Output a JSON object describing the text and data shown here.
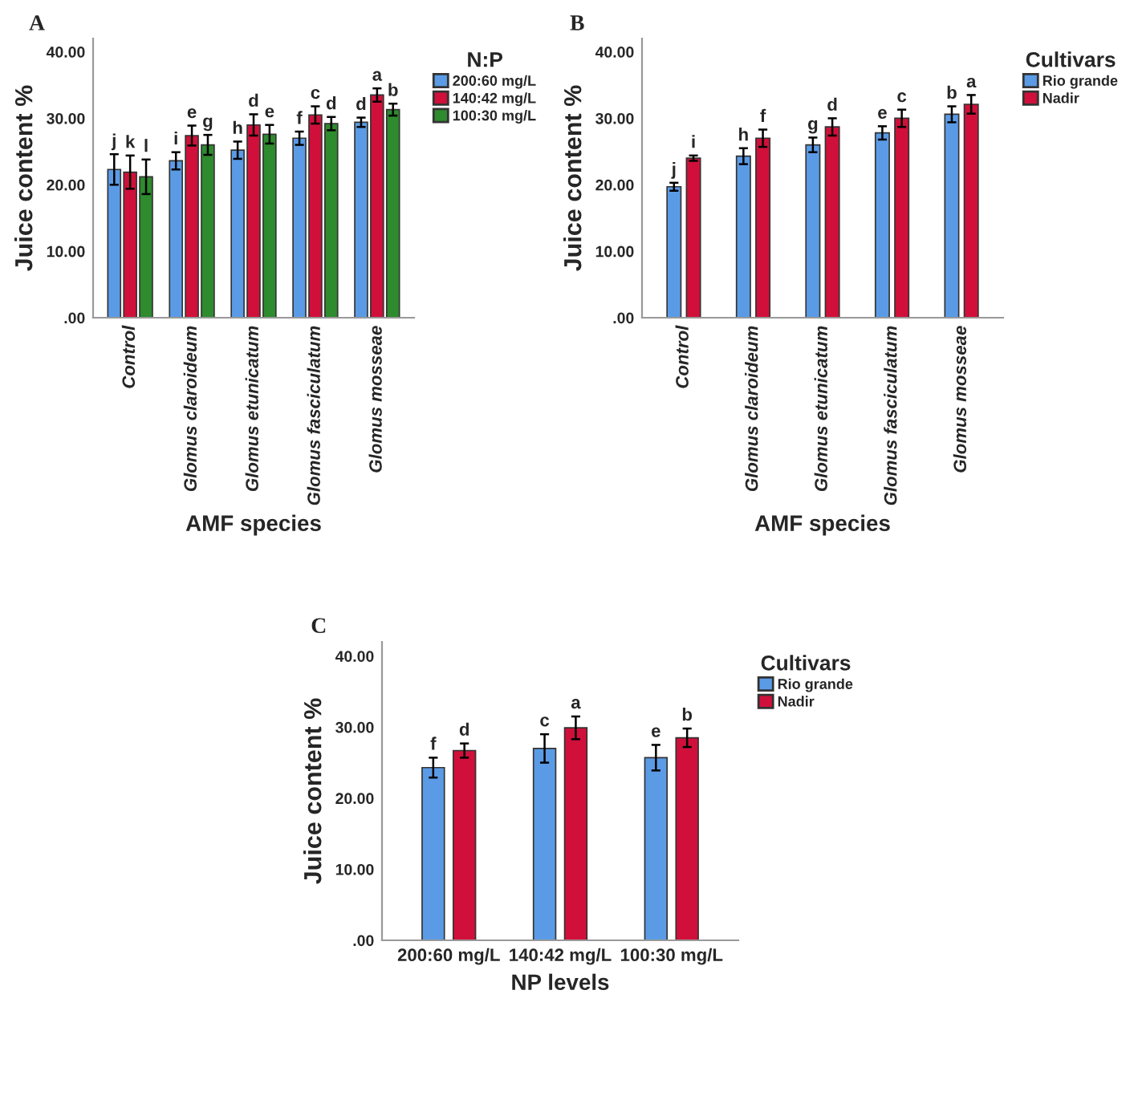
{
  "chart_data": [
    {
      "type": "bar",
      "ylabel": "Juice content %",
      "xlabel": "AMF species",
      "legend_title": "N:P",
      "legend": "top right",
      "annotations": [
        "A"
      ],
      "categories": [
        "Control",
        "Glomus claroideum",
        "Glomus etunicatum",
        "Glomus fasciculatum",
        "Glomus mosseae"
      ],
      "ylim": [
        0,
        42
      ],
      "yticks": [
        {
          "value": 0,
          "label": ".00"
        },
        {
          "value": 10,
          "label": "10.00"
        },
        {
          "value": 20,
          "label": "20.00"
        },
        {
          "value": 30,
          "label": "30.00"
        },
        {
          "value": 40,
          "label": "40.00"
        }
      ],
      "series": [
        {
          "name": "200:60 mg/L",
          "color": "#5b9be6",
          "values": [
            22.3,
            23.6,
            25.2,
            27.0,
            29.4
          ],
          "errors": [
            2.3,
            1.3,
            1.3,
            1.0,
            0.7
          ],
          "value_labels": [
            "j",
            "i",
            "h",
            "f",
            "d"
          ]
        },
        {
          "name": "140:42 mg/L",
          "color": "#d0103a",
          "values": [
            21.9,
            27.4,
            29.0,
            30.5,
            33.5
          ],
          "errors": [
            2.5,
            1.5,
            1.6,
            1.3,
            1.0
          ],
          "value_labels": [
            "k",
            "e",
            "d",
            "c",
            "a"
          ]
        },
        {
          "name": "100:30 mg/L",
          "color": "#2e8b2e",
          "values": [
            21.2,
            26.0,
            27.6,
            29.2,
            31.3
          ],
          "errors": [
            2.6,
            1.5,
            1.4,
            1.0,
            0.9
          ],
          "value_labels": [
            "l",
            "g",
            "e",
            "d",
            "b"
          ]
        }
      ]
    },
    {
      "type": "bar",
      "ylabel": "Juice content %",
      "xlabel": "AMF species",
      "legend_title": "Cultivars",
      "legend": "top right",
      "annotations": [
        "B"
      ],
      "categories": [
        "Control",
        "Glomus claroideum",
        "Glomus etunicatum",
        "Glomus fasciculatum",
        "Glomus mosseae"
      ],
      "ylim": [
        0,
        42
      ],
      "yticks": [
        {
          "value": 0,
          "label": ".00"
        },
        {
          "value": 10,
          "label": "10.00"
        },
        {
          "value": 20,
          "label": "20.00"
        },
        {
          "value": 30,
          "label": "30.00"
        },
        {
          "value": 40,
          "label": "40.00"
        }
      ],
      "series": [
        {
          "name": "Rio grande",
          "color": "#5b9be6",
          "values": [
            19.7,
            24.3,
            26.0,
            27.8,
            30.6
          ],
          "errors": [
            0.6,
            1.2,
            1.1,
            1.0,
            1.2
          ],
          "value_labels": [
            "j",
            "h",
            "g",
            "e",
            "b"
          ]
        },
        {
          "name": "Nadir",
          "color": "#d0103a",
          "values": [
            24.0,
            27.0,
            28.7,
            30.0,
            32.1
          ],
          "errors": [
            0.4,
            1.3,
            1.3,
            1.3,
            1.4
          ],
          "value_labels": [
            "i",
            "f",
            "d",
            "c",
            "a"
          ]
        }
      ]
    },
    {
      "type": "bar",
      "ylabel": "Juice content %",
      "xlabel": "NP levels",
      "legend_title": "Cultivars",
      "legend": "top right",
      "annotations": [
        "C"
      ],
      "categories": [
        "200:60 mg/L",
        "140:42 mg/L",
        "100:30 mg/L"
      ],
      "ylim": [
        0,
        42
      ],
      "yticks": [
        {
          "value": 0,
          "label": ".00"
        },
        {
          "value": 10,
          "label": "10.00"
        },
        {
          "value": 20,
          "label": "20.00"
        },
        {
          "value": 30,
          "label": "30.00"
        },
        {
          "value": 40,
          "label": "40.00"
        }
      ],
      "series": [
        {
          "name": "Rio grande",
          "color": "#5b9be6",
          "values": [
            24.3,
            27.0,
            25.7
          ],
          "errors": [
            1.4,
            2.0,
            1.8
          ],
          "value_labels": [
            "f",
            "c",
            "e"
          ]
        },
        {
          "name": "Nadir",
          "color": "#d0103a",
          "values": [
            26.7,
            29.9,
            28.5
          ],
          "errors": [
            1.0,
            1.6,
            1.3
          ],
          "value_labels": [
            "d",
            "a",
            "b"
          ]
        }
      ]
    }
  ]
}
